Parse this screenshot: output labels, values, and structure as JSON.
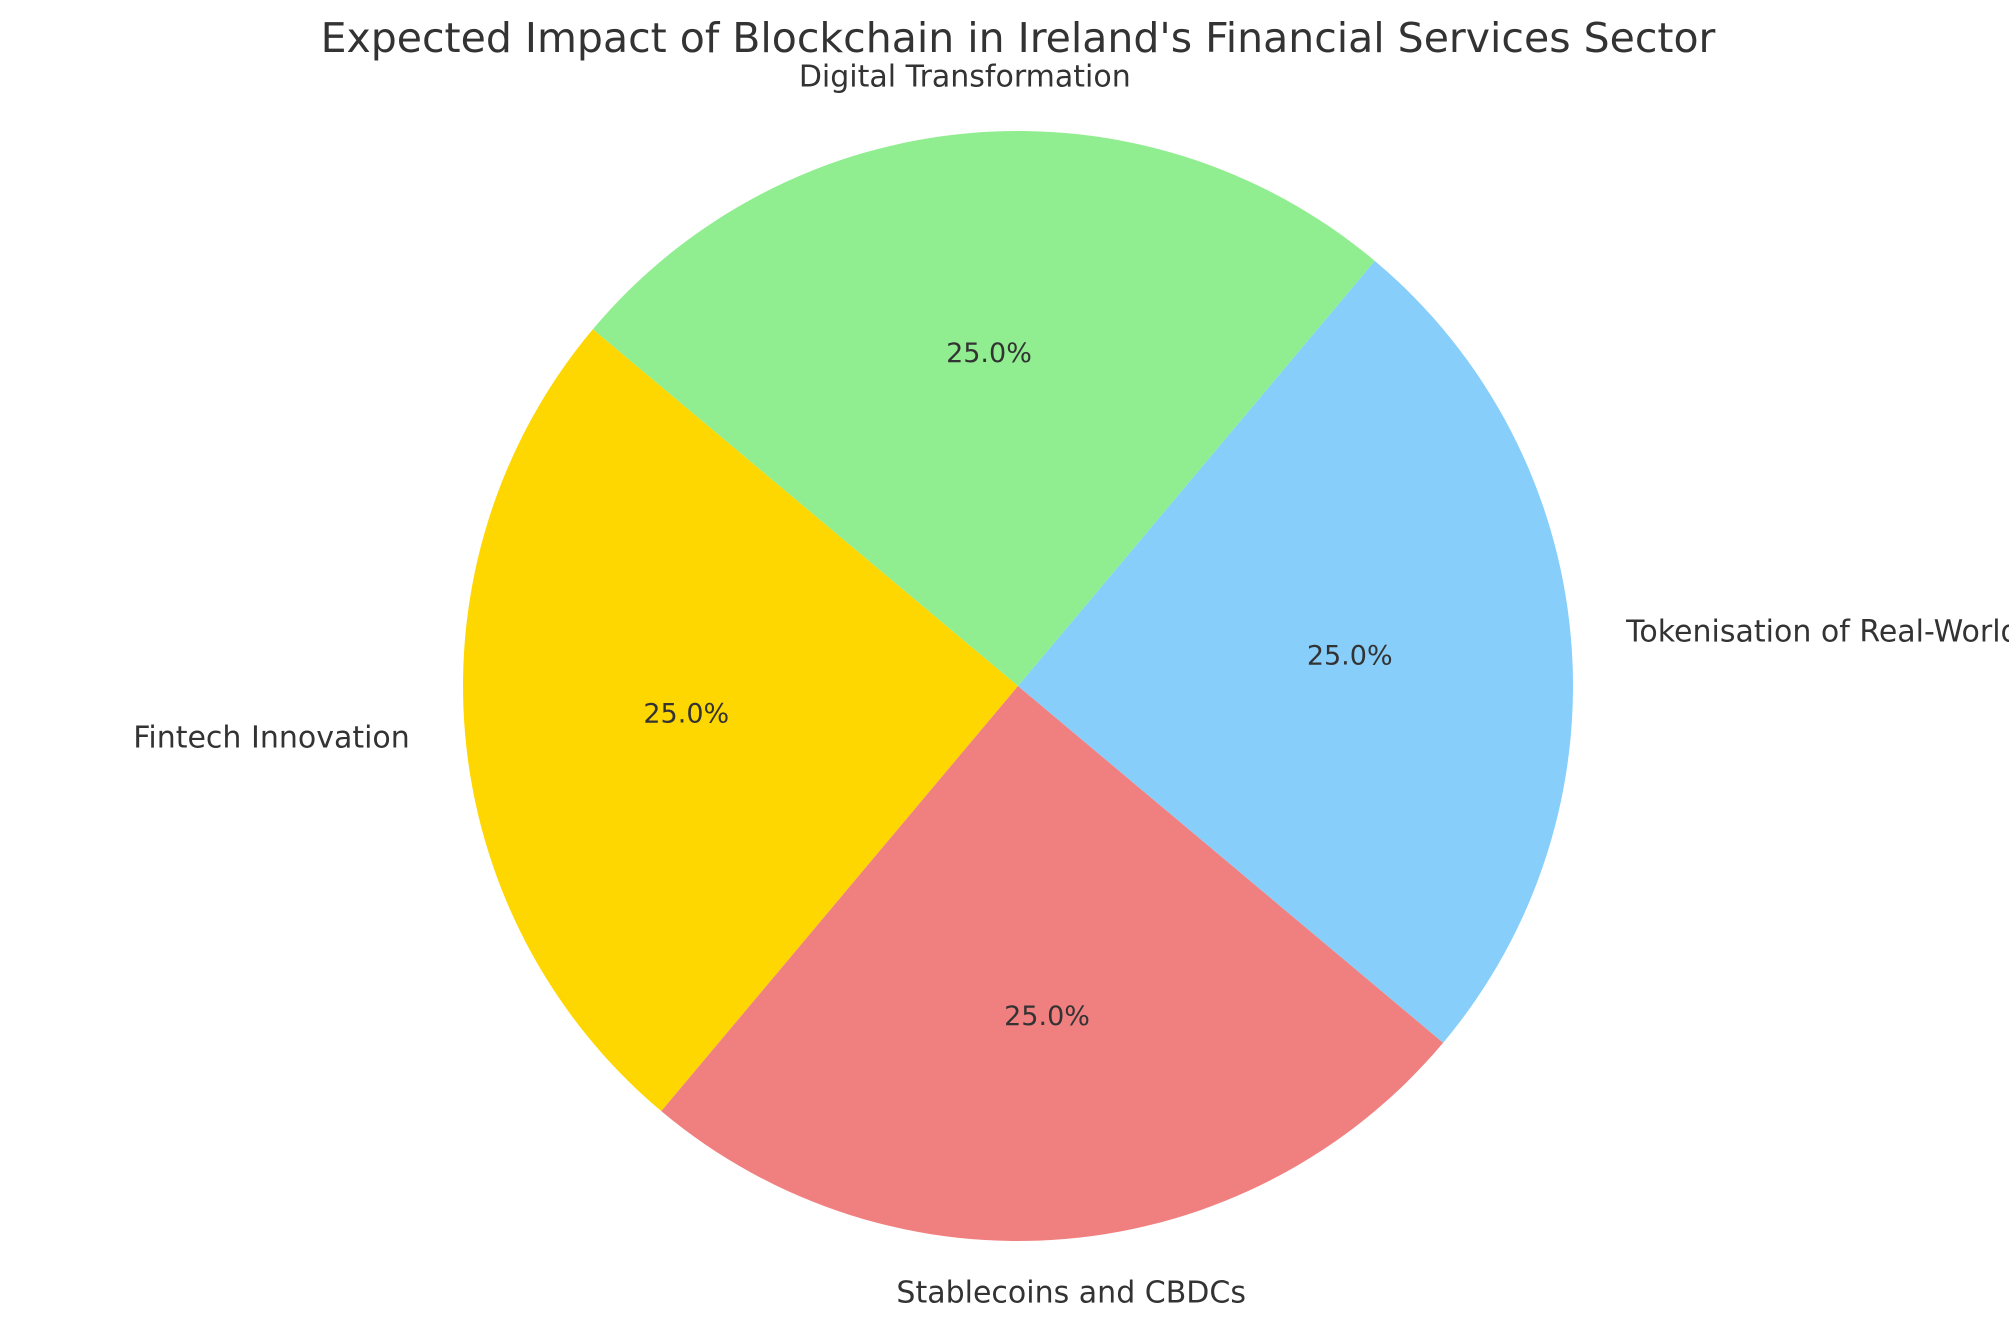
{
  "chart_data": {
    "type": "pie",
    "title": "Expected Impact of Blockchain in Ireland's Financial Services Sector",
    "start_angle_deg": 140,
    "direction": "counterclockwise",
    "slices": [
      {
        "label": "Fintech Innovation",
        "value": 25.0,
        "pct_label": "25.0%",
        "color": "#FFD700"
      },
      {
        "label": "Stablecoins and CBDCs",
        "value": 25.0,
        "pct_label": "25.0%",
        "color": "#F08080"
      },
      {
        "label": "Tokenisation of Real-World Assets",
        "value": 25.0,
        "pct_label": "25.0%",
        "color": "#87CEFA"
      },
      {
        "label": "Digital Transformation",
        "value": 25.0,
        "pct_label": "25.0%",
        "color": "#90EE90"
      }
    ]
  }
}
